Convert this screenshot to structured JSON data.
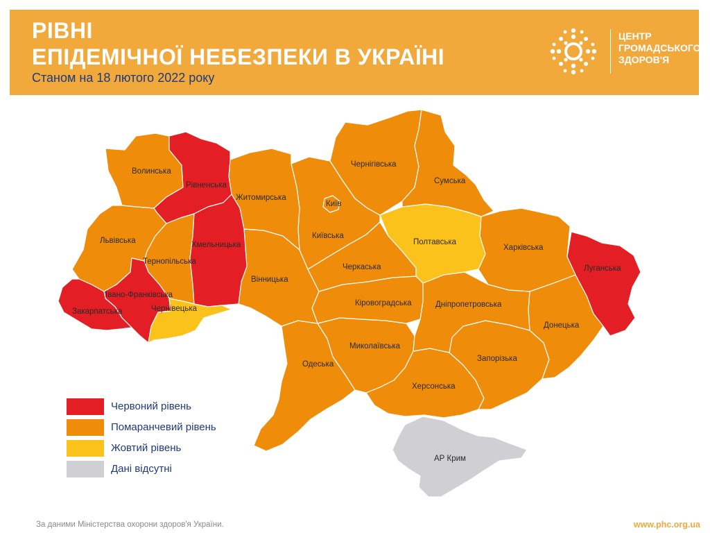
{
  "header": {
    "title_line1": "РІВНІ",
    "title_line2": "ЕПІДЕМІЧНОЇ НЕБЕЗПЕКИ В УКРАЇНІ",
    "subtitle": "Станом на 18 лютого 2022 року",
    "logo_lines": [
      "ЦЕНТР",
      "ГРОМАДСЬКОГО",
      "ЗДОРОВ'Я"
    ]
  },
  "colors": {
    "header_bg": "#f2a93b",
    "red": "#e31e24",
    "orange": "#ef8d0a",
    "yellow": "#fcc21c",
    "gray": "#cfcfd4",
    "text_dark_blue": "#1f3a7a"
  },
  "legend": [
    {
      "key": "red",
      "label": "Червоний рівень"
    },
    {
      "key": "orange",
      "label": "Помаранчевий рівень"
    },
    {
      "key": "yellow",
      "label": "Жовтий рівень"
    },
    {
      "key": "gray",
      "label": "Дані відсутні"
    }
  ],
  "regions": {
    "volynska": {
      "label": "Волинська",
      "level": "orange"
    },
    "rivnenska": {
      "label": "Рівненська",
      "level": "red"
    },
    "zhytomyrska": {
      "label": "Житомирська",
      "level": "orange"
    },
    "chernihivska": {
      "label": "Чернігівська",
      "level": "orange"
    },
    "sumska": {
      "label": "Сумська",
      "level": "orange"
    },
    "kyiv": {
      "label": "Київ",
      "level": "orange"
    },
    "kyivska": {
      "label": "Київська",
      "level": "orange"
    },
    "lvivska": {
      "label": "Львівська",
      "level": "orange"
    },
    "ternopilska": {
      "label": "Тернопільська",
      "level": "orange"
    },
    "khmelnytska": {
      "label": "Хмельницька",
      "level": "red"
    },
    "poltavska": {
      "label": "Полтавська",
      "level": "yellow"
    },
    "kharkivska": {
      "label": "Харківська",
      "level": "orange"
    },
    "luhanska": {
      "label": "Луганська",
      "level": "red"
    },
    "cherkaska": {
      "label": "Черкаська",
      "level": "orange"
    },
    "vinnytska": {
      "label": "Вінницька",
      "level": "orange"
    },
    "ivano_frankivska": {
      "label": "Івано-Франківська",
      "level": "red"
    },
    "zakarpatska": {
      "label": "Закарпатська",
      "level": "red"
    },
    "chernivetska": {
      "label": "Чернівецька",
      "level": "yellow"
    },
    "kirovohradska": {
      "label": "Кіровоградська",
      "level": "orange"
    },
    "dnipropetrovska": {
      "label": "Дніпропетровська",
      "level": "orange"
    },
    "donetska": {
      "label": "Донецька",
      "level": "orange"
    },
    "odeska": {
      "label": "Одеська",
      "level": "orange"
    },
    "mykolaivska": {
      "label": "Миколаївська",
      "level": "orange"
    },
    "zaporizka": {
      "label": "Запорізька",
      "level": "orange"
    },
    "khersonska": {
      "label": "Херсонська",
      "level": "orange"
    },
    "crimea": {
      "label": "АР Крим",
      "level": "gray"
    }
  },
  "footer": {
    "source": "За даними Міністерства охорони здоров'я України.",
    "url": "www.phc.org.ua"
  }
}
